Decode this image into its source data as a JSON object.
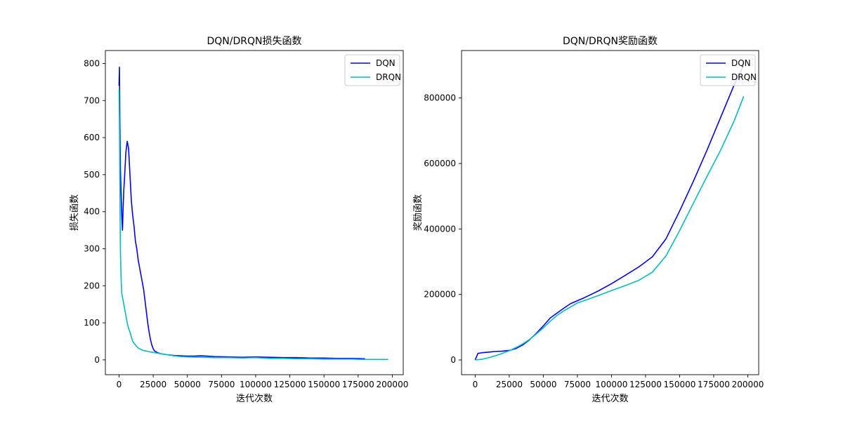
{
  "chart_data": [
    {
      "type": "line",
      "title": "DQN/DRQN损失函数",
      "xlabel": "迭代次数",
      "ylabel": "损失函数",
      "xlim": [
        -10000,
        208000
      ],
      "ylim": [
        -40,
        835
      ],
      "xticks": [
        0,
        25000,
        50000,
        75000,
        100000,
        125000,
        150000,
        175000,
        200000
      ],
      "yticks": [
        0,
        100,
        200,
        300,
        400,
        500,
        600,
        700,
        800
      ],
      "legend": "top-right",
      "grid": false,
      "series": [
        {
          "name": "DQN",
          "color": "#0000ff",
          "x": [
            0,
            300,
            600,
            1000,
            1500,
            2000,
            2500,
            3000,
            3500,
            4000,
            5000,
            6000,
            7000,
            8000,
            9000,
            10000,
            11000,
            12000,
            13000,
            14000,
            15000,
            16000,
            17000,
            18000,
            19000,
            20000,
            21000,
            22000,
            23000,
            24000,
            25000,
            26000,
            28000,
            30000,
            35000,
            40000,
            45000,
            50000,
            55000,
            60000,
            70000,
            80000,
            90000,
            100000,
            110000,
            120000,
            130000,
            140000,
            150000,
            160000,
            170000,
            180000
          ],
          "y": [
            740,
            790,
            640,
            520,
            450,
            390,
            350,
            410,
            460,
            490,
            560,
            590,
            570,
            500,
            430,
            390,
            360,
            320,
            300,
            270,
            250,
            230,
            210,
            190,
            160,
            130,
            100,
            75,
            55,
            40,
            30,
            24,
            20,
            17,
            14,
            12,
            11,
            10,
            10,
            11,
            9,
            8,
            7,
            8,
            7,
            6,
            6,
            5,
            5,
            4,
            4,
            3
          ]
        },
        {
          "name": "DRQN",
          "color": "#00bfbf",
          "x": [
            0,
            300,
            600,
            1000,
            1500,
            2000,
            3000,
            4000,
            5000,
            6000,
            7000,
            8000,
            9000,
            10000,
            12000,
            14000,
            16000,
            18000,
            20000,
            22000,
            25000,
            30000,
            35000,
            40000,
            45000,
            50000,
            60000,
            70000,
            80000,
            90000,
            100000,
            110000,
            120000,
            130000,
            140000,
            150000,
            160000,
            170000,
            180000,
            190000,
            197000
          ],
          "y": [
            730,
            640,
            480,
            300,
            220,
            180,
            160,
            140,
            120,
            100,
            85,
            75,
            62,
            50,
            40,
            32,
            28,
            25,
            24,
            22,
            20,
            17,
            14,
            11,
            9,
            8,
            7,
            6,
            6,
            5,
            6,
            4,
            4,
            3,
            3,
            2,
            2,
            2,
            1,
            1,
            1
          ]
        }
      ]
    },
    {
      "type": "line",
      "title": "DQN/DRQN奖励函数",
      "xlabel": "迭代次数",
      "ylabel": "奖励函数",
      "xlim": [
        -10000,
        208000
      ],
      "ylim": [
        -45000,
        945000
      ],
      "xticks": [
        0,
        25000,
        50000,
        75000,
        100000,
        125000,
        150000,
        175000,
        200000
      ],
      "yticks": [
        0,
        200000,
        400000,
        600000,
        800000
      ],
      "legend": "top-right",
      "grid": false,
      "series": [
        {
          "name": "DQN",
          "color": "#0000ff",
          "x": [
            0,
            2000,
            5000,
            10000,
            15000,
            20000,
            25000,
            30000,
            35000,
            40000,
            45000,
            50000,
            55000,
            60000,
            65000,
            70000,
            75000,
            80000,
            90000,
            100000,
            110000,
            120000,
            130000,
            140000,
            150000,
            160000,
            170000,
            180000,
            190000,
            197000
          ],
          "y": [
            0,
            20000,
            22000,
            24000,
            26000,
            27000,
            29000,
            35000,
            46000,
            62000,
            82000,
            104000,
            128000,
            143000,
            158000,
            172000,
            181000,
            190000,
            210000,
            233000,
            258000,
            284000,
            315000,
            370000,
            455000,
            545000,
            640000,
            740000,
            840000,
            900000
          ]
        },
        {
          "name": "DRQN",
          "color": "#00bfbf",
          "x": [
            0,
            5000,
            10000,
            15000,
            20000,
            25000,
            30000,
            35000,
            40000,
            45000,
            50000,
            55000,
            60000,
            65000,
            70000,
            75000,
            80000,
            90000,
            100000,
            110000,
            120000,
            130000,
            140000,
            150000,
            160000,
            170000,
            180000,
            190000,
            197000
          ],
          "y": [
            0,
            2000,
            7000,
            13000,
            20000,
            28000,
            38000,
            49000,
            63000,
            80000,
            98000,
            118000,
            136000,
            150000,
            162000,
            174000,
            181000,
            196000,
            212000,
            227000,
            243000,
            268000,
            318000,
            395000,
            478000,
            560000,
            640000,
            730000,
            805000
          ]
        }
      ]
    }
  ]
}
